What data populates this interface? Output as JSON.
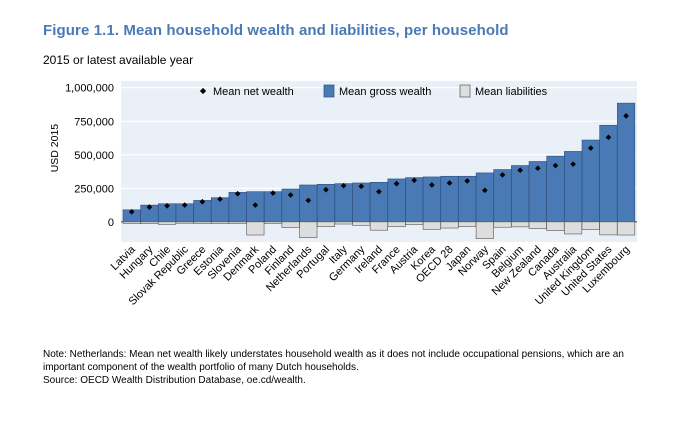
{
  "chart_data": {
    "type": "bar",
    "title": "Figure 1.1. Mean household wealth and liabilities, per household",
    "subtitle": "2015 or latest available year",
    "ylabel": "USD 2015",
    "xlabel": "",
    "ylim": [
      -150000,
      1050000
    ],
    "yticks": [
      0,
      250000,
      500000,
      750000,
      1000000
    ],
    "ytick_labels": [
      "0",
      "250,000",
      "500,000",
      "750,000",
      "1,000,000"
    ],
    "legend": [
      {
        "key": "net",
        "label": "Mean net wealth"
      },
      {
        "key": "gross",
        "label": "Mean gross wealth"
      },
      {
        "key": "liab",
        "label": "Mean liabilities"
      }
    ],
    "categories": [
      "Latvia",
      "Hungary",
      "Chile",
      "Slovak Republic",
      "Greece",
      "Estonia",
      "Slovenia",
      "Denmark",
      "Poland",
      "Finland",
      "Netherlands",
      "Portugal",
      "Italy",
      "Germany",
      "Ireland",
      "France",
      "Austria",
      "Korea",
      "OECD 28",
      "Japan",
      "Norway",
      "Spain",
      "Belgium",
      "New Zealand",
      "Canada",
      "Australia",
      "United Kingdom",
      "United States",
      "Luxembourg"
    ],
    "series": [
      {
        "name": "Mean gross wealth",
        "values": [
          90000,
          125000,
          135000,
          135000,
          160000,
          180000,
          220000,
          225000,
          225000,
          245000,
          275000,
          280000,
          285000,
          290000,
          295000,
          320000,
          330000,
          335000,
          340000,
          340000,
          365000,
          390000,
          420000,
          450000,
          490000,
          525000,
          610000,
          720000,
          885000
        ]
      },
      {
        "name": "Mean net wealth",
        "values": [
          75000,
          110000,
          120000,
          125000,
          150000,
          170000,
          210000,
          125000,
          215000,
          200000,
          160000,
          240000,
          270000,
          265000,
          225000,
          285000,
          310000,
          275000,
          290000,
          305000,
          235000,
          350000,
          385000,
          400000,
          420000,
          430000,
          550000,
          630000,
          790000
        ]
      },
      {
        "name": "Mean liabilities",
        "values": [
          12000,
          13000,
          18000,
          10000,
          12000,
          12000,
          12000,
          98000,
          12000,
          42000,
          118000,
          36000,
          16000,
          26000,
          62000,
          36000,
          20000,
          56000,
          46000,
          36000,
          125000,
          40000,
          37000,
          50000,
          65000,
          90000,
          57000,
          97000,
          98000
        ]
      }
    ],
    "colors": {
      "gross": "#4a7ab5",
      "gross_stroke": "#2f4f7f",
      "liab": "#dddddd",
      "liab_stroke": "#555555",
      "net": "#000000",
      "plot_bg": "#eaf0f7",
      "grid": "#ffffff",
      "title": "#4a7ab5"
    }
  },
  "notes": {
    "note": "Note: Netherlands: Mean net wealth likely understates household wealth as it does not include occupational pensions, which are an important component of the wealth portfolio of many Dutch households.",
    "source": "Source: OECD Wealth Distribution Database, oe.cd/wealth."
  }
}
